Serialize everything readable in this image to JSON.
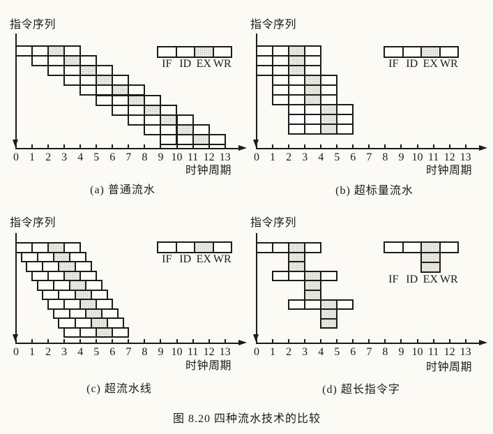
{
  "figure": {
    "caption": "图 8.20  四种流水技术的比较"
  },
  "axes": {
    "y_label": "指令序列",
    "x_label": "时钟周期",
    "x_tick_labels": [
      "0",
      "1",
      "2",
      "3",
      "4",
      "5",
      "6",
      "7",
      "8",
      "9",
      "10",
      "11",
      "12",
      "13"
    ]
  },
  "legend": {
    "stages": [
      "IF",
      "ID",
      "EX",
      "WR"
    ],
    "shaded_stage": "EX"
  },
  "colors": {
    "ink": "#1b1b1b",
    "paper": "#fbfaf5",
    "cell_fill": "#fdfdfa",
    "shaded_cell_fill": "#e9e8e1"
  },
  "subfigures": [
    {
      "id": "a",
      "caption": "(a) 普通流水",
      "pipeline_type": "scalar",
      "stage_count": 4,
      "shaded_stage_index": 2,
      "instruction_row_starts": [
        0,
        1,
        2,
        3,
        4,
        5,
        6,
        7,
        8,
        9
      ],
      "ex_extra_boxes": 0,
      "legend_ex_stack": 0
    },
    {
      "id": "b",
      "caption": "(b) 超标量流水",
      "pipeline_type": "superscalar",
      "stage_count": 4,
      "shaded_stage_index": 2,
      "instruction_row_starts": [
        0,
        0,
        0,
        1,
        1,
        1,
        2,
        2,
        2
      ],
      "ex_extra_boxes": 0,
      "legend_ex_stack": 0
    },
    {
      "id": "c",
      "caption": "(c) 超流水线",
      "pipeline_type": "superpipeline",
      "stage_count": 4,
      "shaded_stage_index": 2,
      "instruction_row_starts": [
        0,
        0.333,
        0.667,
        1,
        1.333,
        1.667,
        2,
        2.333,
        2.667,
        3
      ],
      "ex_extra_boxes": 0,
      "legend_ex_stack": 0
    },
    {
      "id": "d",
      "caption": "(d) 超长指令字",
      "pipeline_type": "vliw",
      "stage_count": 4,
      "shaded_stage_index": 2,
      "instruction_row_starts": [
        0,
        1,
        2
      ],
      "ex_extra_boxes": 2,
      "legend_ex_stack": 2
    }
  ]
}
